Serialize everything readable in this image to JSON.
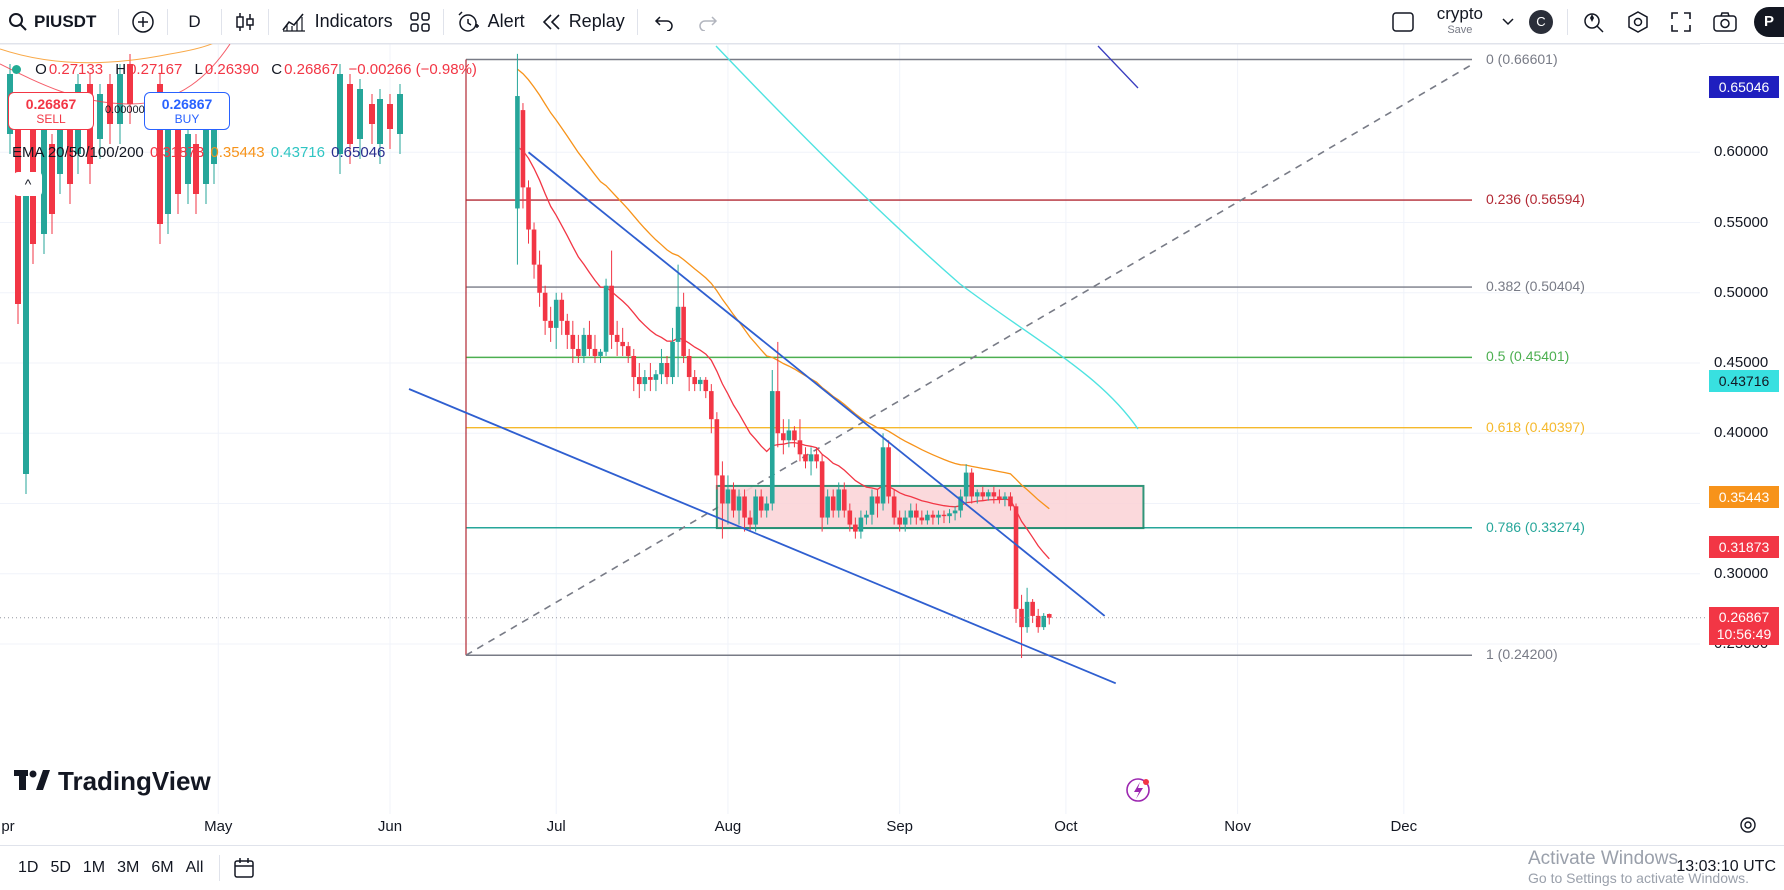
{
  "toolbar": {
    "symbol": "PIUSDT",
    "interval": "D",
    "indicators_label": "Indicators",
    "alert_label": "Alert",
    "replay_label": "Replay",
    "layout_name": "crypto",
    "save_label": "Save",
    "avatar_letter": "C",
    "profile_letter": "P"
  },
  "legend": {
    "open_label": "O",
    "open": "0.27133",
    "high_label": "H",
    "high": "0.27167",
    "low_label": "L",
    "low": "0.26390",
    "close_label": "C",
    "close": "0.26867",
    "change": "−0.00266 (−0.98%)",
    "sell_price": "0.26867",
    "sell_label": "SELL",
    "spread": "0.00000",
    "buy_price": "0.26867",
    "buy_label": "BUY",
    "ema_label": "EMA 20/50/100/200",
    "ema20": "0.31873",
    "ema50": "0.35443",
    "ema100": "0.43716",
    "ema200": "0.65046",
    "collapse_glyph": "^"
  },
  "fib_levels": [
    {
      "label": "0 (0.66601)",
      "price": 0.66601,
      "color": "#787b86"
    },
    {
      "label": "0.236 (0.56594)",
      "price": 0.56594,
      "color": "#b22833"
    },
    {
      "label": "0.382 (0.50404)",
      "price": 0.50404,
      "color": "#787b86"
    },
    {
      "label": "0.5 (0.45401)",
      "price": 0.45401,
      "color": "#4caf50"
    },
    {
      "label": "0.618 (0.40397)",
      "price": 0.40397,
      "color": "#f5b92c"
    },
    {
      "label": "0.786 (0.33274)",
      "price": 0.33274,
      "color": "#26a69a"
    },
    {
      "label": "1 (0.24200)",
      "price": 0.242,
      "color": "#787b86"
    }
  ],
  "price_scale": {
    "ticks": [
      "0.60000",
      "0.55000",
      "0.50000",
      "0.45000",
      "0.40000",
      "0.35000",
      "0.30000",
      "0.25000"
    ],
    "badges": {
      "ema200": "0.65046",
      "ema100": "0.43716",
      "ema50": "0.35443",
      "ema20": "0.31873",
      "last_price": "0.26867",
      "countdown": "10:56:49"
    }
  },
  "time_axis": [
    "pr",
    "May",
    "Jun",
    "Jul",
    "Aug",
    "Sep",
    "Oct",
    "Nov",
    "Dec"
  ],
  "bottom_bar": {
    "ranges": [
      "1D",
      "5D",
      "1M",
      "3M",
      "6M",
      "All"
    ],
    "clock": "13:03:10 UTC",
    "activate_title": "Activate Windows",
    "activate_sub": "Go to Settings to activate Windows."
  },
  "branding": {
    "logo_text": "TradingView"
  },
  "colors": {
    "up": "#26a69a",
    "down": "#f23645",
    "ema20": "#f23645",
    "ema50": "#f7931a",
    "ema100": "#4fe3e1",
    "ema200": "#2a2e8f",
    "channel": "#2f5fd0",
    "zone_fill": "#fbd5d9",
    "zone_border": "#1b8a6b"
  },
  "chart_data": {
    "type": "candlestick",
    "symbol": "PIUSDT",
    "interval": "D",
    "y_range": [
      0.215,
      0.695
    ],
    "candles": [
      {
        "date": "2025-06-24",
        "o": 0.56,
        "h": 0.67,
        "l": 0.52,
        "c": 0.64
      },
      {
        "date": "2025-06-25",
        "o": 0.63,
        "h": 0.635,
        "l": 0.56,
        "c": 0.575
      },
      {
        "date": "2025-06-26",
        "o": 0.575,
        "h": 0.58,
        "l": 0.535,
        "c": 0.545
      },
      {
        "date": "2025-06-27",
        "o": 0.545,
        "h": 0.55,
        "l": 0.51,
        "c": 0.52
      },
      {
        "date": "2025-06-28",
        "o": 0.52,
        "h": 0.53,
        "l": 0.49,
        "c": 0.5
      },
      {
        "date": "2025-06-29",
        "o": 0.5,
        "h": 0.505,
        "l": 0.47,
        "c": 0.48
      },
      {
        "date": "2025-06-30",
        "o": 0.48,
        "h": 0.49,
        "l": 0.465,
        "c": 0.475
      },
      {
        "date": "2025-07-01",
        "o": 0.475,
        "h": 0.5,
        "l": 0.46,
        "c": 0.495
      },
      {
        "date": "2025-07-02",
        "o": 0.495,
        "h": 0.5,
        "l": 0.47,
        "c": 0.48
      },
      {
        "date": "2025-07-03",
        "o": 0.48,
        "h": 0.485,
        "l": 0.46,
        "c": 0.47
      },
      {
        "date": "2025-07-04",
        "o": 0.47,
        "h": 0.48,
        "l": 0.45,
        "c": 0.46
      },
      {
        "date": "2025-07-05",
        "o": 0.46,
        "h": 0.47,
        "l": 0.45,
        "c": 0.455
      },
      {
        "date": "2025-07-06",
        "o": 0.455,
        "h": 0.475,
        "l": 0.45,
        "c": 0.47
      },
      {
        "date": "2025-07-07",
        "o": 0.47,
        "h": 0.48,
        "l": 0.455,
        "c": 0.46
      },
      {
        "date": "2025-07-08",
        "o": 0.46,
        "h": 0.47,
        "l": 0.45,
        "c": 0.455
      },
      {
        "date": "2025-07-09",
        "o": 0.455,
        "h": 0.46,
        "l": 0.45,
        "c": 0.458
      },
      {
        "date": "2025-07-10",
        "o": 0.458,
        "h": 0.51,
        "l": 0.455,
        "c": 0.505
      },
      {
        "date": "2025-07-11",
        "o": 0.505,
        "h": 0.53,
        "l": 0.46,
        "c": 0.47
      },
      {
        "date": "2025-07-12",
        "o": 0.47,
        "h": 0.48,
        "l": 0.455,
        "c": 0.465
      },
      {
        "date": "2025-07-13",
        "o": 0.465,
        "h": 0.475,
        "l": 0.455,
        "c": 0.462
      },
      {
        "date": "2025-07-14",
        "o": 0.462,
        "h": 0.465,
        "l": 0.45,
        "c": 0.455
      },
      {
        "date": "2025-07-15",
        "o": 0.455,
        "h": 0.46,
        "l": 0.43,
        "c": 0.44
      },
      {
        "date": "2025-07-16",
        "o": 0.44,
        "h": 0.45,
        "l": 0.425,
        "c": 0.435
      },
      {
        "date": "2025-07-17",
        "o": 0.435,
        "h": 0.445,
        "l": 0.43,
        "c": 0.44
      },
      {
        "date": "2025-07-18",
        "o": 0.44,
        "h": 0.45,
        "l": 0.43,
        "c": 0.438
      },
      {
        "date": "2025-07-19",
        "o": 0.438,
        "h": 0.445,
        "l": 0.43,
        "c": 0.442
      },
      {
        "date": "2025-07-20",
        "o": 0.442,
        "h": 0.46,
        "l": 0.435,
        "c": 0.45
      },
      {
        "date": "2025-07-21",
        "o": 0.45,
        "h": 0.455,
        "l": 0.435,
        "c": 0.44
      },
      {
        "date": "2025-07-22",
        "o": 0.44,
        "h": 0.475,
        "l": 0.435,
        "c": 0.465
      },
      {
        "date": "2025-07-23",
        "o": 0.465,
        "h": 0.52,
        "l": 0.44,
        "c": 0.49
      },
      {
        "date": "2025-07-24",
        "o": 0.49,
        "h": 0.5,
        "l": 0.45,
        "c": 0.455
      },
      {
        "date": "2025-07-25",
        "o": 0.455,
        "h": 0.46,
        "l": 0.43,
        "c": 0.44
      },
      {
        "date": "2025-07-26",
        "o": 0.44,
        "h": 0.445,
        "l": 0.43,
        "c": 0.435
      },
      {
        "date": "2025-07-27",
        "o": 0.435,
        "h": 0.44,
        "l": 0.43,
        "c": 0.438
      },
      {
        "date": "2025-07-28",
        "o": 0.438,
        "h": 0.44,
        "l": 0.425,
        "c": 0.43
      },
      {
        "date": "2025-07-29",
        "o": 0.43,
        "h": 0.435,
        "l": 0.4,
        "c": 0.41
      },
      {
        "date": "2025-07-30",
        "o": 0.41,
        "h": 0.415,
        "l": 0.36,
        "c": 0.37
      },
      {
        "date": "2025-07-31",
        "o": 0.37,
        "h": 0.38,
        "l": 0.325,
        "c": 0.35
      },
      {
        "date": "2025-08-01",
        "o": 0.35,
        "h": 0.37,
        "l": 0.335,
        "c": 0.36
      },
      {
        "date": "2025-08-02",
        "o": 0.36,
        "h": 0.365,
        "l": 0.34,
        "c": 0.345
      },
      {
        "date": "2025-08-03",
        "o": 0.345,
        "h": 0.36,
        "l": 0.335,
        "c": 0.355
      },
      {
        "date": "2025-08-04",
        "o": 0.355,
        "h": 0.36,
        "l": 0.33,
        "c": 0.34
      },
      {
        "date": "2025-08-05",
        "o": 0.34,
        "h": 0.345,
        "l": 0.33,
        "c": 0.335
      },
      {
        "date": "2025-08-06",
        "o": 0.335,
        "h": 0.36,
        "l": 0.33,
        "c": 0.355
      },
      {
        "date": "2025-08-07",
        "o": 0.355,
        "h": 0.36,
        "l": 0.34,
        "c": 0.345
      },
      {
        "date": "2025-08-08",
        "o": 0.345,
        "h": 0.355,
        "l": 0.34,
        "c": 0.35
      },
      {
        "date": "2025-08-09",
        "o": 0.35,
        "h": 0.445,
        "l": 0.345,
        "c": 0.43
      },
      {
        "date": "2025-08-10",
        "o": 0.43,
        "h": 0.465,
        "l": 0.39,
        "c": 0.4
      },
      {
        "date": "2025-08-11",
        "o": 0.4,
        "h": 0.41,
        "l": 0.385,
        "c": 0.395
      },
      {
        "date": "2025-08-12",
        "o": 0.395,
        "h": 0.41,
        "l": 0.39,
        "c": 0.402
      },
      {
        "date": "2025-08-13",
        "o": 0.402,
        "h": 0.405,
        "l": 0.39,
        "c": 0.395
      },
      {
        "date": "2025-08-14",
        "o": 0.395,
        "h": 0.41,
        "l": 0.38,
        "c": 0.385
      },
      {
        "date": "2025-08-15",
        "o": 0.385,
        "h": 0.39,
        "l": 0.375,
        "c": 0.38
      },
      {
        "date": "2025-08-16",
        "o": 0.38,
        "h": 0.39,
        "l": 0.37,
        "c": 0.385
      },
      {
        "date": "2025-08-17",
        "o": 0.385,
        "h": 0.39,
        "l": 0.375,
        "c": 0.38
      },
      {
        "date": "2025-08-18",
        "o": 0.38,
        "h": 0.385,
        "l": 0.33,
        "c": 0.34
      },
      {
        "date": "2025-08-19",
        "o": 0.34,
        "h": 0.36,
        "l": 0.335,
        "c": 0.355
      },
      {
        "date": "2025-08-20",
        "o": 0.355,
        "h": 0.36,
        "l": 0.34,
        "c": 0.345
      },
      {
        "date": "2025-08-21",
        "o": 0.345,
        "h": 0.365,
        "l": 0.34,
        "c": 0.36
      },
      {
        "date": "2025-08-22",
        "o": 0.36,
        "h": 0.365,
        "l": 0.34,
        "c": 0.345
      },
      {
        "date": "2025-08-23",
        "o": 0.345,
        "h": 0.35,
        "l": 0.33,
        "c": 0.335
      },
      {
        "date": "2025-08-24",
        "o": 0.335,
        "h": 0.34,
        "l": 0.325,
        "c": 0.33
      },
      {
        "date": "2025-08-25",
        "o": 0.33,
        "h": 0.345,
        "l": 0.325,
        "c": 0.34
      },
      {
        "date": "2025-08-26",
        "o": 0.34,
        "h": 0.345,
        "l": 0.335,
        "c": 0.342
      },
      {
        "date": "2025-08-27",
        "o": 0.342,
        "h": 0.36,
        "l": 0.335,
        "c": 0.355
      },
      {
        "date": "2025-08-28",
        "o": 0.355,
        "h": 0.36,
        "l": 0.34,
        "c": 0.35
      },
      {
        "date": "2025-08-29",
        "o": 0.35,
        "h": 0.4,
        "l": 0.345,
        "c": 0.39
      },
      {
        "date": "2025-08-30",
        "o": 0.39,
        "h": 0.395,
        "l": 0.35,
        "c": 0.355
      },
      {
        "date": "2025-08-31",
        "o": 0.355,
        "h": 0.36,
        "l": 0.335,
        "c": 0.34
      },
      {
        "date": "2025-09-01",
        "o": 0.34,
        "h": 0.345,
        "l": 0.33,
        "c": 0.335
      },
      {
        "date": "2025-09-02",
        "o": 0.335,
        "h": 0.345,
        "l": 0.33,
        "c": 0.34
      },
      {
        "date": "2025-09-03",
        "o": 0.34,
        "h": 0.35,
        "l": 0.335,
        "c": 0.345
      },
      {
        "date": "2025-09-04",
        "o": 0.345,
        "h": 0.35,
        "l": 0.335,
        "c": 0.34
      },
      {
        "date": "2025-09-05",
        "o": 0.34,
        "h": 0.345,
        "l": 0.335,
        "c": 0.338
      },
      {
        "date": "2025-09-06",
        "o": 0.338,
        "h": 0.345,
        "l": 0.335,
        "c": 0.342
      },
      {
        "date": "2025-09-07",
        "o": 0.342,
        "h": 0.345,
        "l": 0.335,
        "c": 0.34
      },
      {
        "date": "2025-09-08",
        "o": 0.34,
        "h": 0.345,
        "l": 0.335,
        "c": 0.342
      },
      {
        "date": "2025-09-09",
        "o": 0.342,
        "h": 0.345,
        "l": 0.336,
        "c": 0.341
      },
      {
        "date": "2025-09-10",
        "o": 0.341,
        "h": 0.346,
        "l": 0.336,
        "c": 0.343
      },
      {
        "date": "2025-09-11",
        "o": 0.343,
        "h": 0.348,
        "l": 0.338,
        "c": 0.345
      },
      {
        "date": "2025-09-12",
        "o": 0.345,
        "h": 0.36,
        "l": 0.34,
        "c": 0.355
      },
      {
        "date": "2025-09-13",
        "o": 0.355,
        "h": 0.378,
        "l": 0.35,
        "c": 0.372
      },
      {
        "date": "2025-09-14",
        "o": 0.372,
        "h": 0.375,
        "l": 0.35,
        "c": 0.355
      },
      {
        "date": "2025-09-15",
        "o": 0.355,
        "h": 0.36,
        "l": 0.35,
        "c": 0.358
      },
      {
        "date": "2025-09-16",
        "o": 0.358,
        "h": 0.362,
        "l": 0.352,
        "c": 0.355
      },
      {
        "date": "2025-09-17",
        "o": 0.355,
        "h": 0.36,
        "l": 0.352,
        "c": 0.358
      },
      {
        "date": "2025-09-18",
        "o": 0.358,
        "h": 0.362,
        "l": 0.35,
        "c": 0.355
      },
      {
        "date": "2025-09-19",
        "o": 0.355,
        "h": 0.36,
        "l": 0.35,
        "c": 0.353
      },
      {
        "date": "2025-09-20",
        "o": 0.353,
        "h": 0.358,
        "l": 0.348,
        "c": 0.355
      },
      {
        "date": "2025-09-21",
        "o": 0.355,
        "h": 0.358,
        "l": 0.345,
        "c": 0.348
      },
      {
        "date": "2025-09-22",
        "o": 0.348,
        "h": 0.35,
        "l": 0.265,
        "c": 0.275
      },
      {
        "date": "2025-09-23",
        "o": 0.275,
        "h": 0.285,
        "l": 0.24,
        "c": 0.262
      },
      {
        "date": "2025-09-24",
        "o": 0.262,
        "h": 0.29,
        "l": 0.258,
        "c": 0.28
      },
      {
        "date": "2025-09-25",
        "o": 0.28,
        "h": 0.282,
        "l": 0.265,
        "c": 0.27
      },
      {
        "date": "2025-09-26",
        "o": 0.27,
        "h": 0.275,
        "l": 0.258,
        "c": 0.262
      },
      {
        "date": "2025-09-27",
        "o": 0.262,
        "h": 0.272,
        "l": 0.26,
        "c": 0.27
      },
      {
        "date": "2025-09-28",
        "o": 0.27133,
        "h": 0.27167,
        "l": 0.2639,
        "c": 0.26867
      }
    ]
  }
}
